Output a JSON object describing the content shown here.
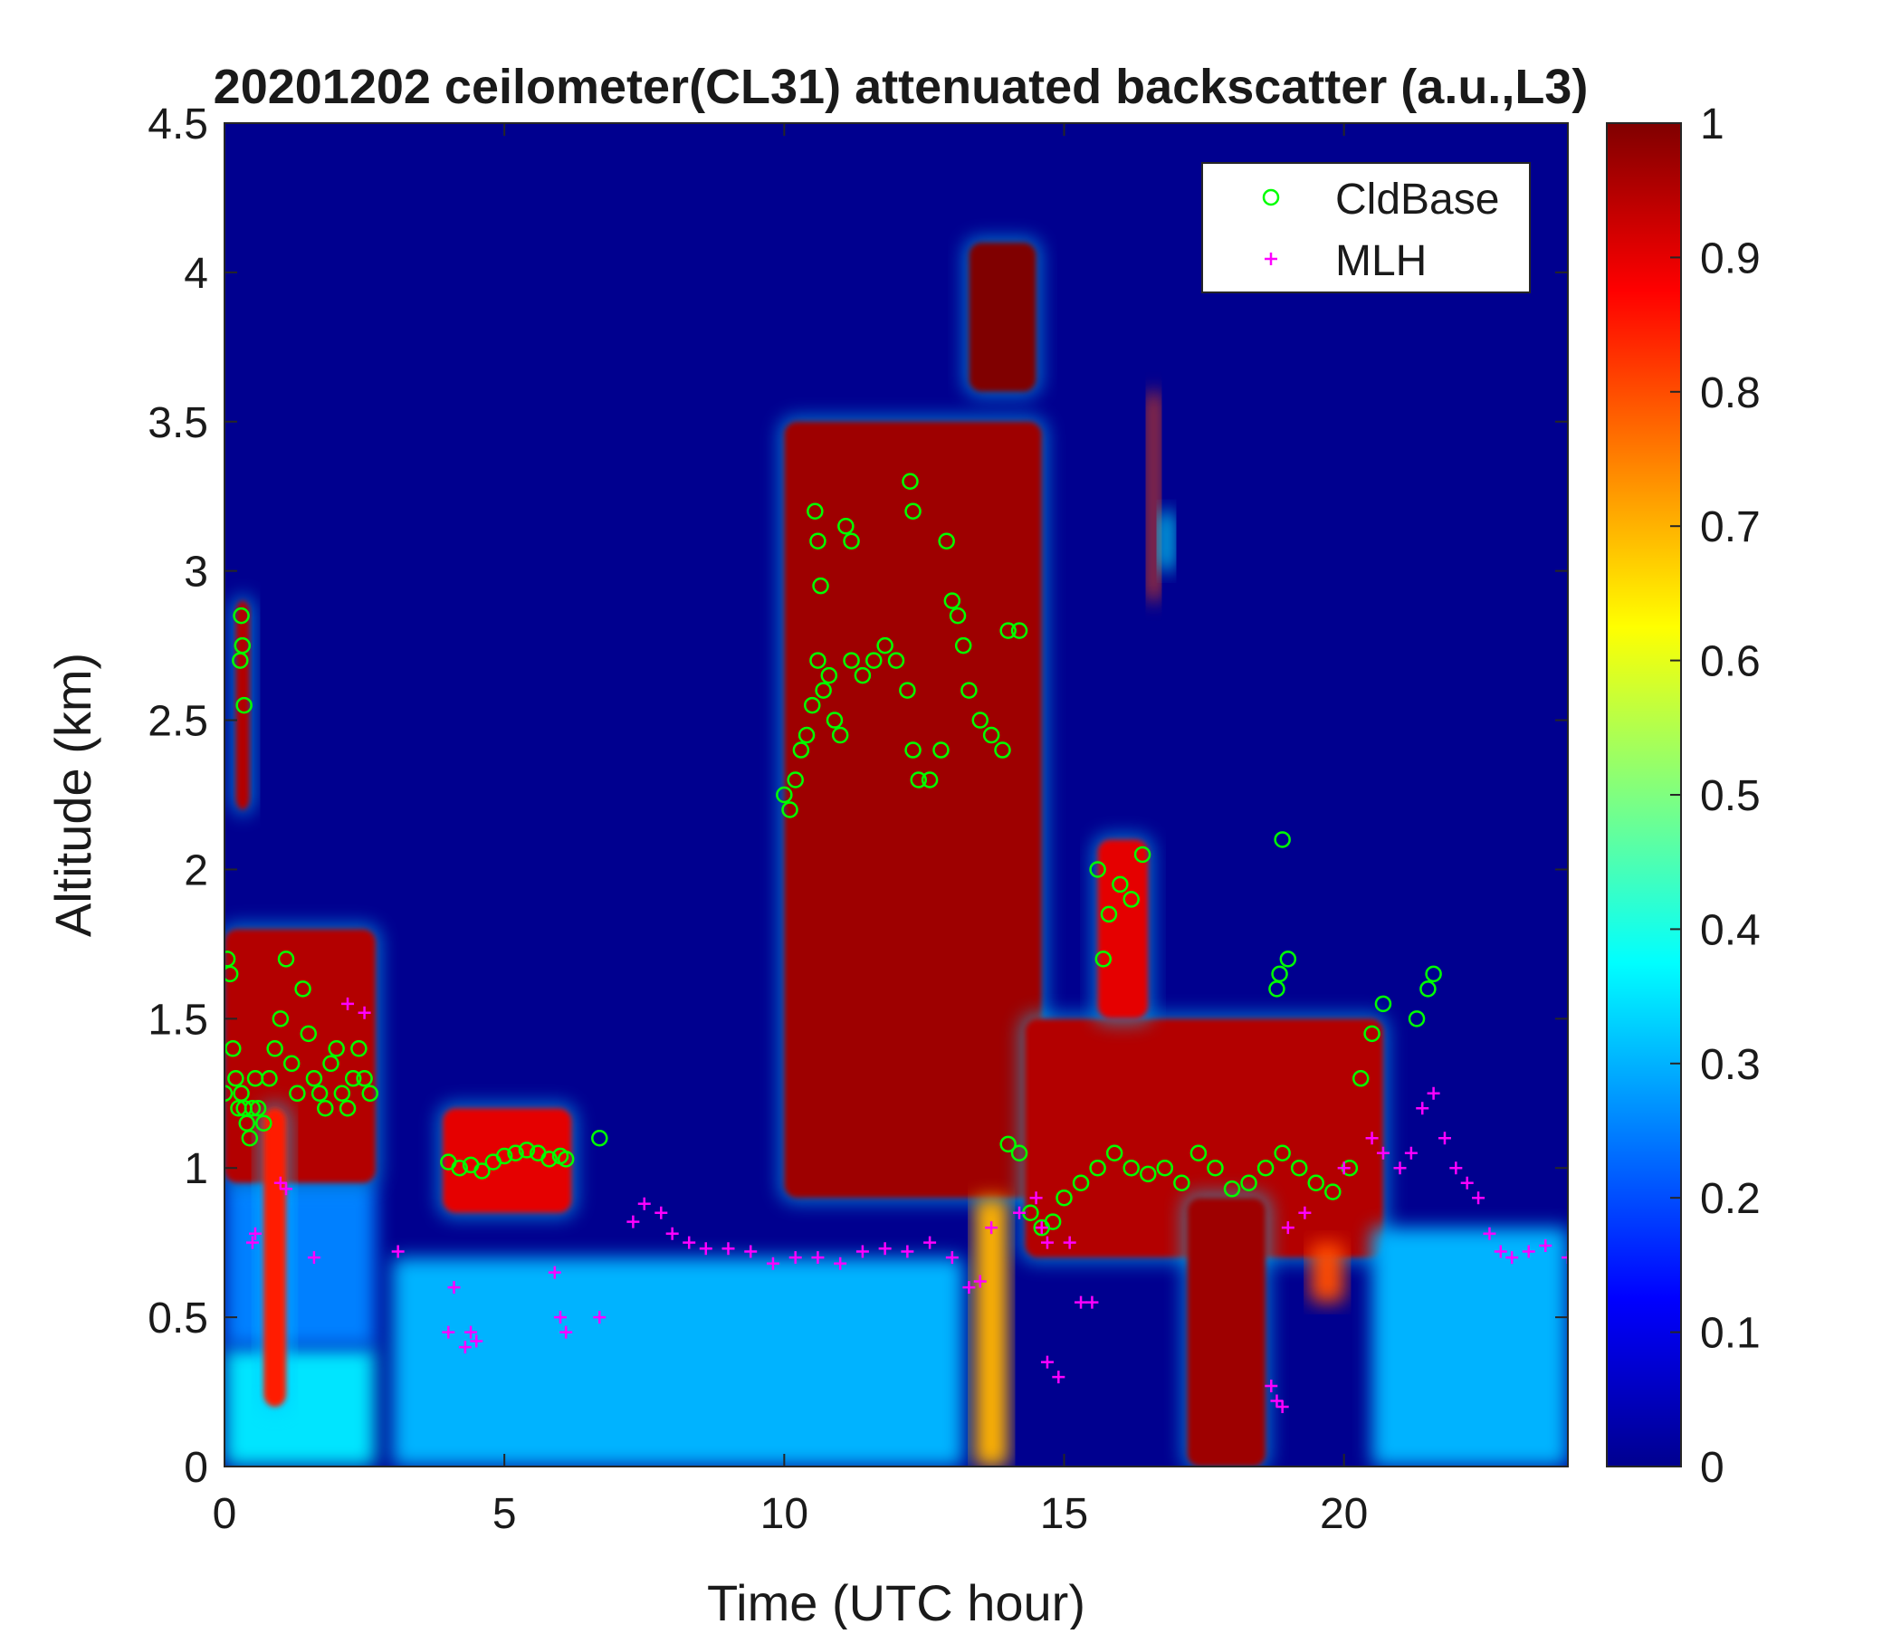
{
  "chart_data": {
    "type": "heatmap",
    "title": "20201202 ceilometer(CL31) attenuated backscatter (a.u.,L3)",
    "xlabel": "Time (UTC hour)",
    "ylabel": "Altitude (km)",
    "xlim": [
      0,
      24
    ],
    "ylim": [
      0,
      4.5
    ],
    "x_ticks": [
      0,
      5,
      10,
      15,
      20
    ],
    "y_ticks": [
      0,
      0.5,
      1,
      1.5,
      2,
      2.5,
      3,
      3.5,
      4,
      4.5
    ],
    "colorbar": {
      "colormap": "jet",
      "range": [
        0,
        1
      ],
      "ticks": [
        0,
        0.1,
        0.2,
        0.3,
        0.4,
        0.5,
        0.6,
        0.7,
        0.8,
        0.9,
        1
      ]
    },
    "legend": {
      "placement": "top-right",
      "entries": [
        {
          "label": "CldBase",
          "marker": "circle",
          "color": "#00ff00"
        },
        {
          "label": "MLH",
          "marker": "plus",
          "color": "#ff00ff"
        }
      ]
    },
    "series": [
      {
        "name": "CldBase",
        "marker": "circle",
        "color": "#00ff00",
        "x": [
          0.0,
          0.05,
          0.1,
          0.15,
          0.2,
          0.25,
          0.3,
          0.35,
          0.4,
          0.45,
          0.5,
          0.55,
          0.6,
          0.7,
          0.8,
          0.9,
          1.0,
          1.1,
          1.2,
          1.3,
          1.4,
          1.5,
          1.6,
          1.7,
          1.8,
          1.9,
          2.0,
          2.1,
          2.2,
          2.3,
          2.4,
          2.5,
          2.6,
          0.3,
          0.32,
          0.35,
          0.28,
          4.0,
          4.2,
          4.4,
          4.6,
          4.8,
          5.0,
          5.2,
          5.4,
          5.6,
          5.8,
          6.0,
          6.1,
          6.7,
          10.0,
          10.1,
          10.2,
          10.3,
          10.4,
          10.5,
          10.6,
          10.7,
          10.8,
          10.9,
          11.0,
          11.2,
          11.4,
          11.6,
          11.8,
          12.0,
          12.2,
          12.3,
          12.4,
          12.6,
          12.8,
          12.9,
          13.0,
          13.1,
          13.2,
          13.3,
          13.5,
          13.7,
          13.9,
          14.0,
          14.2,
          10.55,
          10.6,
          10.65,
          11.1,
          11.2,
          12.25,
          12.3,
          14.0,
          14.2,
          14.4,
          14.6,
          14.8,
          15.0,
          15.3,
          15.6,
          15.9,
          16.2,
          16.5,
          16.8,
          17.1,
          17.4,
          17.7,
          18.0,
          18.3,
          18.6,
          18.9,
          19.2,
          19.5,
          19.8,
          20.1,
          20.3,
          20.5,
          20.7,
          15.6,
          15.8,
          16.0,
          16.2,
          16.4,
          15.7,
          18.8,
          18.9,
          19.0,
          18.85,
          21.3,
          21.5,
          21.6
        ],
        "y": [
          1.25,
          1.7,
          1.65,
          1.4,
          1.3,
          1.2,
          1.25,
          1.2,
          1.15,
          1.1,
          1.2,
          1.3,
          1.2,
          1.15,
          1.3,
          1.4,
          1.5,
          1.7,
          1.35,
          1.25,
          1.6,
          1.45,
          1.3,
          1.25,
          1.2,
          1.35,
          1.4,
          1.25,
          1.2,
          1.3,
          1.4,
          1.3,
          1.25,
          2.85,
          2.75,
          2.55,
          2.7,
          1.02,
          1.0,
          1.01,
          0.99,
          1.02,
          1.04,
          1.05,
          1.06,
          1.05,
          1.03,
          1.04,
          1.03,
          1.1,
          2.25,
          2.2,
          2.3,
          2.4,
          2.45,
          2.55,
          2.7,
          2.6,
          2.65,
          2.5,
          2.45,
          2.7,
          2.65,
          2.7,
          2.75,
          2.7,
          2.6,
          2.4,
          2.3,
          2.3,
          2.4,
          3.1,
          2.9,
          2.85,
          2.75,
          2.6,
          2.5,
          2.45,
          2.4,
          2.8,
          2.8,
          3.2,
          3.1,
          2.95,
          3.15,
          3.1,
          3.3,
          3.2,
          1.08,
          1.05,
          0.85,
          0.8,
          0.82,
          0.9,
          0.95,
          1.0,
          1.05,
          1.0,
          0.98,
          1.0,
          0.95,
          1.05,
          1.0,
          0.93,
          0.95,
          1.0,
          1.05,
          1.0,
          0.95,
          0.92,
          1.0,
          1.3,
          1.45,
          1.55,
          2.0,
          1.85,
          1.95,
          1.9,
          2.05,
          1.7,
          1.6,
          2.1,
          1.7,
          1.65,
          1.5,
          1.6,
          1.65
        ]
      },
      {
        "name": "MLH",
        "marker": "plus",
        "color": "#ff00ff",
        "x": [
          0.5,
          0.55,
          1.0,
          1.1,
          1.6,
          2.2,
          2.5,
          3.1,
          4.0,
          4.1,
          4.3,
          4.4,
          4.5,
          5.9,
          6.0,
          6.1,
          6.7,
          7.3,
          7.5,
          7.8,
          8.0,
          8.3,
          8.6,
          9.0,
          9.4,
          9.8,
          10.2,
          10.6,
          11.0,
          11.4,
          11.8,
          12.2,
          12.6,
          13.0,
          13.3,
          13.5,
          13.7,
          14.2,
          14.5,
          14.7,
          14.9,
          15.1,
          15.3,
          15.5,
          14.6,
          14.7,
          18.7,
          18.8,
          18.9,
          19.0,
          19.3,
          20.0,
          20.5,
          20.7,
          21.0,
          21.2,
          21.4,
          21.6,
          21.8,
          22.0,
          22.2,
          22.4,
          22.6,
          22.8,
          23.0,
          23.3,
          23.6,
          24.0
        ],
        "y": [
          0.75,
          0.78,
          0.95,
          0.93,
          0.7,
          1.55,
          1.52,
          0.72,
          0.45,
          0.6,
          0.4,
          0.45,
          0.42,
          0.65,
          0.5,
          0.45,
          0.5,
          0.82,
          0.88,
          0.85,
          0.78,
          0.75,
          0.73,
          0.73,
          0.72,
          0.68,
          0.7,
          0.7,
          0.68,
          0.72,
          0.73,
          0.72,
          0.75,
          0.7,
          0.6,
          0.62,
          0.8,
          0.85,
          0.9,
          0.35,
          0.3,
          0.75,
          0.55,
          0.55,
          0.8,
          0.75,
          0.27,
          0.22,
          0.2,
          0.8,
          0.85,
          1.0,
          1.1,
          1.05,
          1.0,
          1.05,
          1.2,
          1.25,
          1.1,
          1.0,
          0.95,
          0.9,
          0.78,
          0.72,
          0.7,
          0.72,
          0.74,
          0.7
        ]
      }
    ],
    "backscatter_features": [
      {
        "x": [
          0.0,
          2.7
        ],
        "y": [
          0.0,
          0.4
        ],
        "value": 0.35
      },
      {
        "x": [
          0.0,
          2.7
        ],
        "y": [
          0.4,
          0.95
        ],
        "value": 0.25
      },
      {
        "x": [
          0.0,
          2.7
        ],
        "y": [
          0.95,
          1.8
        ],
        "value": 0.95
      },
      {
        "x": [
          0.2,
          0.45
        ],
        "y": [
          2.2,
          2.9
        ],
        "value": 0.95
      },
      {
        "x": [
          0.7,
          1.1
        ],
        "y": [
          0.2,
          1.2
        ],
        "value": 0.85
      },
      {
        "x": [
          3.9,
          6.2
        ],
        "y": [
          0.85,
          1.2
        ],
        "value": 0.9
      },
      {
        "x": [
          3.0,
          13.2
        ],
        "y": [
          0.0,
          0.7
        ],
        "value": 0.3
      },
      {
        "x": [
          10.0,
          14.6
        ],
        "y": [
          0.9,
          3.5
        ],
        "value": 0.97
      },
      {
        "x": [
          13.3,
          14.5
        ],
        "y": [
          3.6,
          4.1
        ],
        "value": 1.0
      },
      {
        "x": [
          13.4,
          14.0
        ],
        "y": [
          0.0,
          0.9
        ],
        "value": 0.7
      },
      {
        "x": [
          14.3,
          20.7
        ],
        "y": [
          0.7,
          1.5
        ],
        "value": 0.95
      },
      {
        "x": [
          15.6,
          16.5
        ],
        "y": [
          1.5,
          2.1
        ],
        "value": 0.9
      },
      {
        "x": [
          17.2,
          18.6
        ],
        "y": [
          0.0,
          0.9
        ],
        "value": 0.97
      },
      {
        "x": [
          19.4,
          20.0
        ],
        "y": [
          0.55,
          0.75
        ],
        "value": 0.8
      },
      {
        "x": [
          20.5,
          24.0
        ],
        "y": [
          0.0,
          0.8
        ],
        "value": 0.3
      },
      {
        "x": [
          16.5,
          16.7
        ],
        "y": [
          2.9,
          3.6
        ],
        "value": 0.8
      },
      {
        "x": [
          16.7,
          16.95
        ],
        "y": [
          3.0,
          3.2
        ],
        "value": 0.35
      }
    ]
  }
}
